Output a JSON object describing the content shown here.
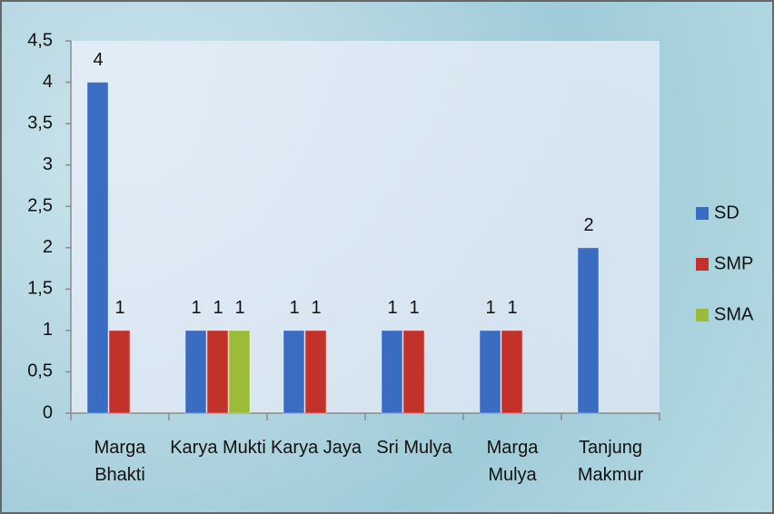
{
  "chart_data": {
    "type": "bar",
    "categories": [
      "Marga Bhakti",
      "Karya Mukti",
      "Karya Jaya",
      "Sri Mulya",
      "Marga Mulya",
      "Tanjung Makmur"
    ],
    "series": [
      {
        "name": "SD",
        "color": "#3a6cc2",
        "values": [
          4,
          1,
          1,
          1,
          1,
          2
        ]
      },
      {
        "name": "SMP",
        "color": "#c3312b",
        "values": [
          1,
          1,
          1,
          1,
          1,
          null
        ]
      },
      {
        "name": "SMA",
        "color": "#9cbb38",
        "values": [
          null,
          1,
          null,
          null,
          null,
          null
        ]
      }
    ],
    "ylim": [
      0,
      4.5
    ],
    "yticks": [
      0,
      {
        "value": 0.5,
        "label": "0,5"
      },
      1,
      {
        "value": 1.5,
        "label": "1,5"
      },
      2,
      {
        "value": 2.5,
        "label": "2,5"
      },
      3,
      {
        "value": 3.5,
        "label": "3,5"
      },
      4,
      {
        "value": 4.5,
        "label": "4,5"
      }
    ],
    "legend": "right",
    "grid": false
  }
}
